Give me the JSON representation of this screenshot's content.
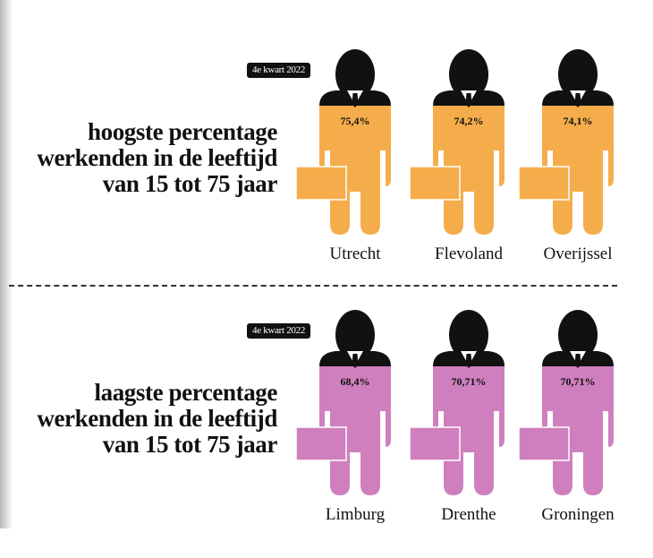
{
  "chart_data": [
    {
      "type": "pictogram",
      "badge": "4e kwart 2022",
      "title_lines": [
        "hoogste percentage",
        "werkenden in de leeftijd",
        "van 15 tot 75 jaar"
      ],
      "categories": [
        "Utrecht",
        "Flevoland",
        "Overijssel"
      ],
      "values": [
        75.4,
        74.2,
        74.1
      ],
      "value_labels": [
        "75,4%",
        "74,2%",
        "74,1%"
      ],
      "unit": "%",
      "color": "#f5ad4b"
    },
    {
      "type": "pictogram",
      "badge": "4e kwart 2022",
      "title_lines": [
        "laagste percentage",
        "werkenden in de leeftijd",
        "van 15 tot 75 jaar"
      ],
      "categories": [
        "Limburg",
        "Drenthe",
        "Groningen"
      ],
      "values": [
        68.4,
        70.71,
        70.71
      ],
      "value_labels": [
        "68,4%",
        "70,71%",
        "70,71%"
      ],
      "unit": "%",
      "color": "#cf7fbd"
    }
  ],
  "colors": {
    "suit": "#111111",
    "shirt": "#ffffff",
    "text": "#111111"
  }
}
